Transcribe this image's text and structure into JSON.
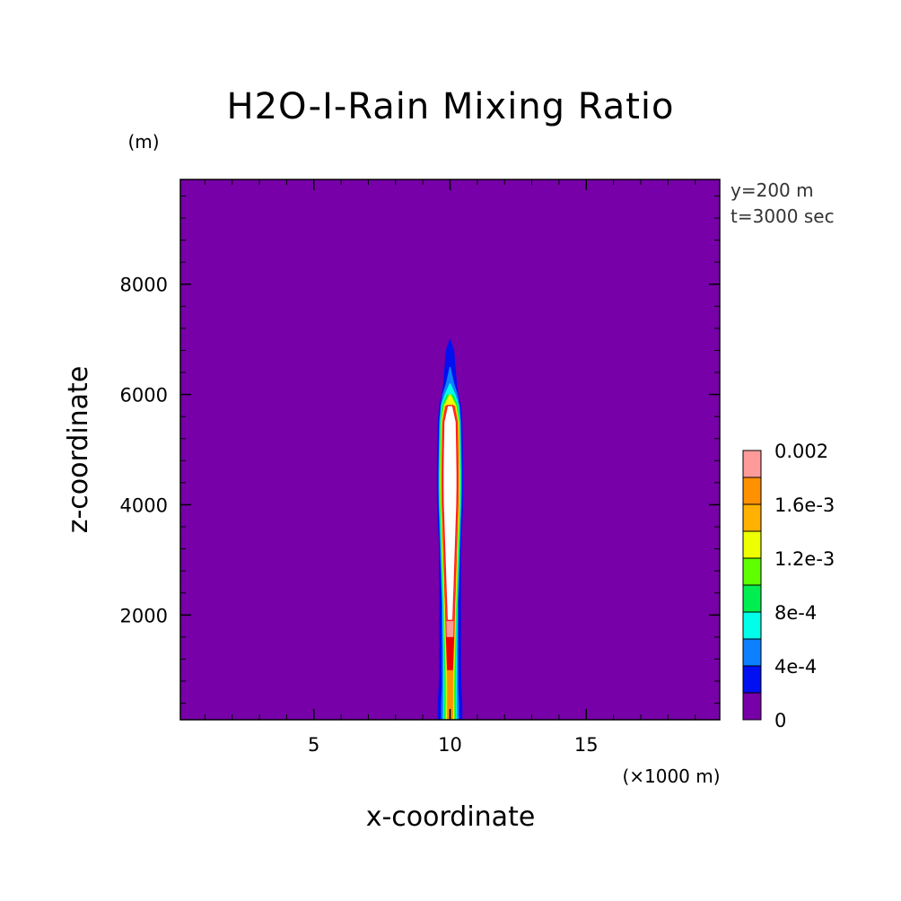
{
  "chart_data": {
    "type": "heatmap",
    "title": "H2O-I-Rain Mixing Ratio",
    "xlabel": "x-coordinate",
    "ylabel": "z-coordinate",
    "x_unit": "(×1000 m)",
    "y_unit": "(m)",
    "xlim": [
      0.1,
      19.9
    ],
    "ylim": [
      100,
      9900
    ],
    "x_ticks": [
      5,
      10,
      15
    ],
    "x_tick_labels": [
      "5",
      "10",
      "15"
    ],
    "y_ticks": [
      2000,
      4000,
      6000,
      8000
    ],
    "y_tick_labels": [
      "2000",
      "4000",
      "6000",
      "8000"
    ],
    "annotations": [
      "y=200 m",
      "t=3000 sec"
    ],
    "colorbar": {
      "levels": [
        0,
        0.0002,
        0.0004,
        0.0006,
        0.0008,
        0.001,
        0.0012,
        0.0014,
        0.0016,
        0.0018,
        0.002
      ],
      "tick_labels": [
        "0",
        "4e-4",
        "8e-4",
        "1.2e-3",
        "1.6e-3",
        "0.002"
      ],
      "colors": [
        "#7700a8",
        "#0010f0",
        "#0c80ff",
        "#00ffe8",
        "#00ee50",
        "#60ff00",
        "#eeff00",
        "#ffb000",
        "#ff9000",
        "#ee0000",
        "#ff9a9a"
      ],
      "above_max_color": "#ffffff"
    },
    "field_z": [
      100,
      400,
      700,
      1000,
      1300,
      1600,
      1900,
      2200,
      2500,
      2800,
      3100,
      3400,
      3700,
      4000,
      4300,
      4600,
      4900,
      5200,
      5500,
      5800,
      6000,
      6200,
      6500,
      6800,
      7000
    ],
    "contours": [
      {
        "level": 0.0002,
        "halfwidth_km": [
          0.45,
          0.45,
          0.42,
          0.4,
          0.4,
          0.4,
          0.4,
          0.4,
          0.4,
          0.4,
          0.4,
          0.42,
          0.45,
          0.47,
          0.48,
          0.48,
          0.47,
          0.46,
          0.45,
          0.4,
          0.3,
          0.25,
          0.2,
          0.15,
          0.02
        ]
      },
      {
        "level": 0.0004,
        "halfwidth_km": [
          0.33,
          0.33,
          0.3,
          0.3,
          0.3,
          0.3,
          0.3,
          0.3,
          0.32,
          0.34,
          0.36,
          0.38,
          0.4,
          0.42,
          0.43,
          0.43,
          0.42,
          0.41,
          0.4,
          0.35,
          0.28,
          0.15,
          0.02,
          0.0,
          0.0
        ]
      },
      {
        "level": 0.0006,
        "halfwidth_km": [
          0.26,
          0.25,
          0.25,
          0.25,
          0.25,
          0.26,
          0.27,
          0.28,
          0.3,
          0.32,
          0.34,
          0.36,
          0.38,
          0.4,
          0.41,
          0.41,
          0.4,
          0.39,
          0.38,
          0.33,
          0.2,
          0.02,
          0.0,
          0.0,
          0.0
        ]
      },
      {
        "level": 0.0008,
        "halfwidth_km": [
          0.22,
          0.21,
          0.21,
          0.21,
          0.22,
          0.23,
          0.24,
          0.26,
          0.28,
          0.3,
          0.32,
          0.34,
          0.36,
          0.38,
          0.39,
          0.39,
          0.38,
          0.37,
          0.36,
          0.3,
          0.12,
          0.0,
          0.0,
          0.0,
          0.0
        ]
      },
      {
        "level": 0.001,
        "halfwidth_km": [
          0.18,
          0.17,
          0.17,
          0.18,
          0.19,
          0.21,
          0.22,
          0.24,
          0.26,
          0.28,
          0.3,
          0.32,
          0.34,
          0.36,
          0.37,
          0.37,
          0.36,
          0.35,
          0.34,
          0.25,
          0.05,
          0.0,
          0.0,
          0.0,
          0.0
        ]
      },
      {
        "level": 0.0012,
        "halfwidth_km": [
          0.15,
          0.14,
          0.14,
          0.15,
          0.17,
          0.19,
          0.2,
          0.22,
          0.24,
          0.26,
          0.28,
          0.3,
          0.32,
          0.34,
          0.35,
          0.35,
          0.34,
          0.33,
          0.32,
          0.22,
          0.02,
          0.0,
          0.0,
          0.0,
          0.0
        ]
      },
      {
        "level": 0.0014,
        "halfwidth_km": [
          0.12,
          0.12,
          0.12,
          0.13,
          0.15,
          0.17,
          0.18,
          0.2,
          0.22,
          0.24,
          0.26,
          0.28,
          0.3,
          0.32,
          0.33,
          0.33,
          0.32,
          0.31,
          0.3,
          0.2,
          0.0,
          0.0,
          0.0,
          0.0,
          0.0
        ]
      },
      {
        "level": 0.0016,
        "halfwidth_km": [
          0.1,
          0.1,
          0.1,
          0.12,
          0.14,
          0.16,
          0.17,
          0.19,
          0.21,
          0.23,
          0.25,
          0.27,
          0.29,
          0.31,
          0.32,
          0.32,
          0.31,
          0.3,
          0.29,
          0.18,
          0.0,
          0.0,
          0.0,
          0.0,
          0.0
        ]
      },
      {
        "level": 0.0018,
        "halfwidth_km": [
          0.0,
          0.0,
          0.0,
          0.11,
          0.13,
          0.15,
          0.16,
          0.18,
          0.2,
          0.22,
          0.24,
          0.26,
          0.28,
          0.3,
          0.31,
          0.31,
          0.3,
          0.29,
          0.28,
          0.15,
          0.0,
          0.0,
          0.0,
          0.0,
          0.0
        ]
      },
      {
        "level": 0.002,
        "halfwidth_km": [
          0.0,
          0.0,
          0.0,
          0.0,
          0.0,
          0.13,
          0.14,
          0.16,
          0.18,
          0.2,
          0.22,
          0.24,
          0.26,
          0.28,
          0.29,
          0.29,
          0.28,
          0.27,
          0.26,
          0.13,
          0.0,
          0.0,
          0.0,
          0.0,
          0.0
        ]
      },
      {
        "level": 0.0022,
        "halfwidth_km": [
          0.0,
          0.0,
          0.0,
          0.0,
          0.0,
          0.0,
          0.11,
          0.13,
          0.15,
          0.17,
          0.19,
          0.21,
          0.23,
          0.25,
          0.26,
          0.26,
          0.25,
          0.24,
          0.23,
          0.1,
          0.0,
          0.0,
          0.0,
          0.0,
          0.0
        ]
      }
    ],
    "plume_center_x": 10.0
  }
}
